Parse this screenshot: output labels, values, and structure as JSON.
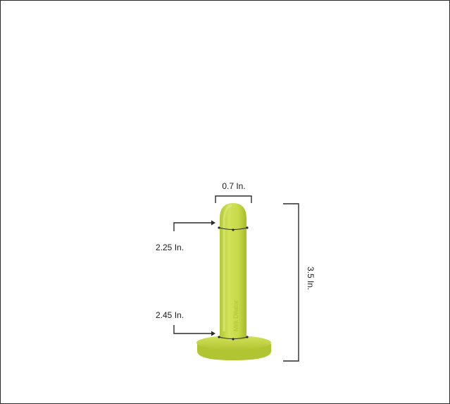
{
  "dimensions": {
    "top_width": "0.7 In.",
    "upper_circumference": "2.25 In.",
    "lower_circumference": "2.45 In.",
    "height": "3.5 In."
  },
  "product": {
    "engraving": "Milli Dilator"
  },
  "colors": {
    "body": "#c9dc4a",
    "body_shadow": "#a9bd2c",
    "highlight": "#dbe97a",
    "line": "#2b2b2b",
    "frame": "#2a2a2a"
  }
}
